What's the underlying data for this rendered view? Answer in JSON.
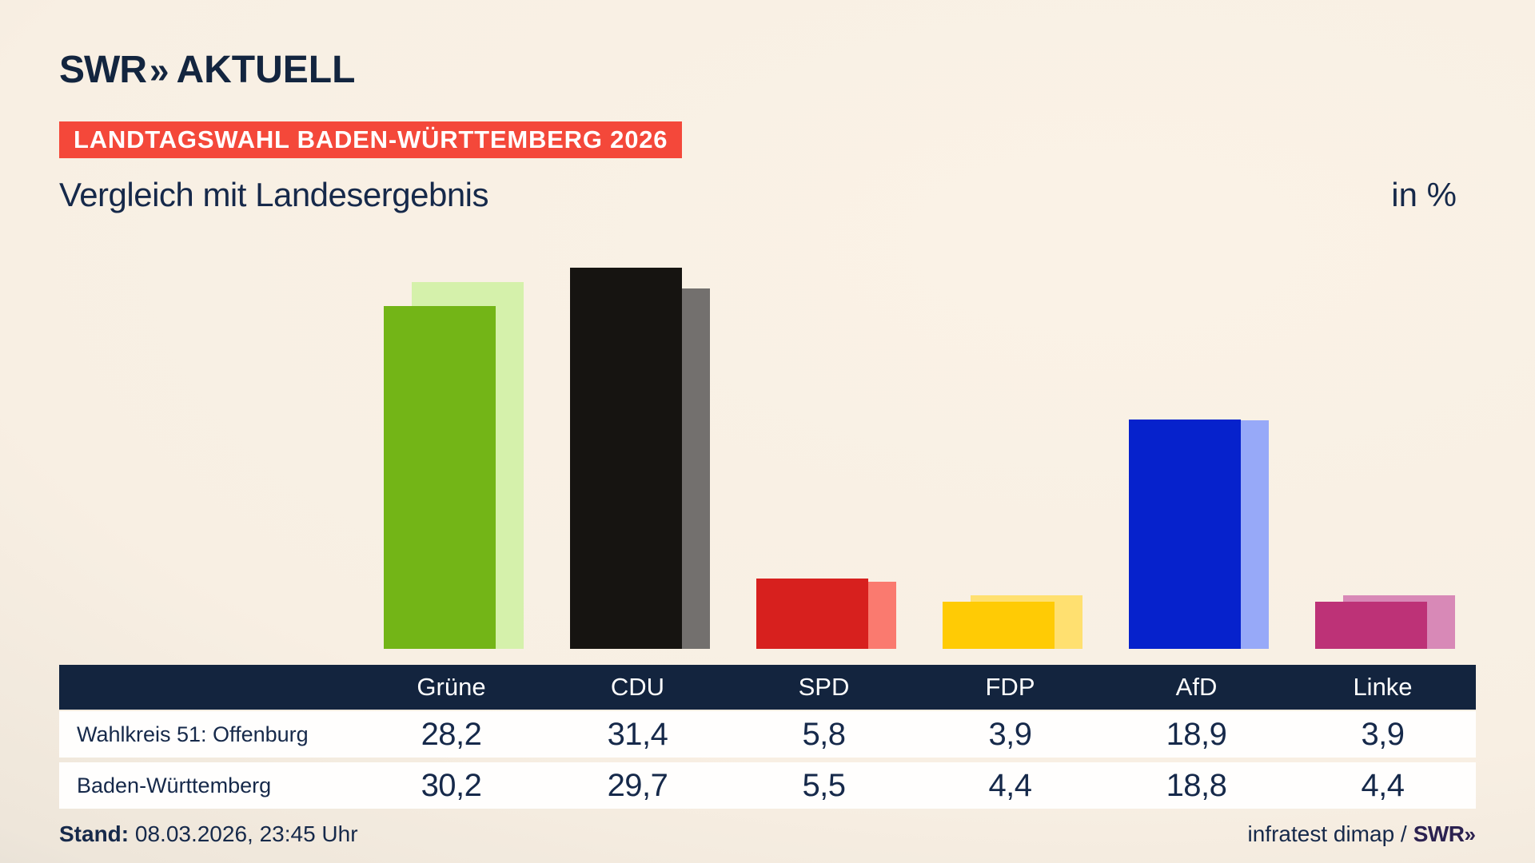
{
  "header": {
    "logo_swr": "SWR",
    "logo_chevron": "»",
    "logo_aktuell": "AKTUELL",
    "banner": "LANDTAGSWAHL BADEN-WÜRTTEMBERG 2026"
  },
  "titles": {
    "main": "Vergleich mit Landesergebnis",
    "unit": "in %"
  },
  "chart_data": {
    "type": "bar",
    "categories": [
      "Grüne",
      "CDU",
      "SPD",
      "FDP",
      "AfD",
      "Linke"
    ],
    "series": [
      {
        "name": "Wahlkreis 51: Offenburg",
        "values": [
          28.2,
          31.4,
          5.8,
          3.9,
          18.9,
          3.9
        ]
      },
      {
        "name": "Baden-Württemberg",
        "values": [
          30.2,
          29.7,
          5.5,
          4.4,
          18.8,
          4.4
        ]
      }
    ],
    "title": "Vergleich mit Landesergebnis",
    "unit_label": "in %",
    "ylim": [
      0,
      35
    ],
    "grid": false,
    "legend_position": "none",
    "colors": {
      "wahlkreis": [
        "#73b517",
        "#161411",
        "#d7201e",
        "#ffcb05",
        "#0622cc",
        "#bd3277"
      ],
      "land": [
        "#d5f1ab",
        "#73706e",
        "#fa7a6f",
        "#ffe070",
        "#97a9f8",
        "#d889b7"
      ]
    }
  },
  "table": {
    "columns": [
      "Grüne",
      "CDU",
      "SPD",
      "FDP",
      "AfD",
      "Linke"
    ],
    "rows": [
      {
        "label": "Wahlkreis 51: Offenburg",
        "values": [
          "28,2",
          "31,4",
          "5,8",
          "3,9",
          "18,9",
          "3,9"
        ]
      },
      {
        "label": "Baden-Württemberg",
        "values": [
          "30,2",
          "29,7",
          "5,5",
          "4,4",
          "18,8",
          "4,4"
        ]
      }
    ]
  },
  "footer": {
    "stand_label": "Stand:",
    "stand_value": "08.03.2026, 23:45 Uhr",
    "source_text": "infratest dimap /",
    "source_brand": "SWR",
    "source_chevron": "»"
  },
  "colors": {
    "banner_red": "#f4483a",
    "header_navy": "#13243e",
    "text_navy": "#16294a"
  }
}
